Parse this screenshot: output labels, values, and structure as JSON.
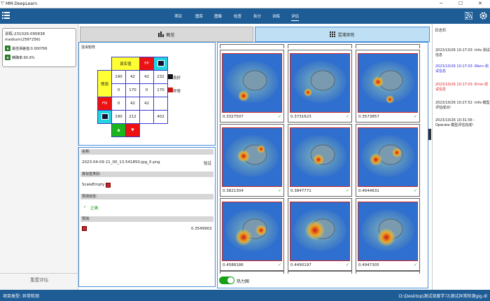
{
  "app": {
    "title": "MM-DeepLearn"
  },
  "nav": {
    "tabs": [
      "项目",
      "图库",
      "图像",
      "检查",
      "拆分",
      "训练",
      "评估"
    ],
    "active": "评估"
  },
  "model": {
    "name": "训练-231026-095838",
    "size": "medium(256*256)",
    "loss_label": "最佳误差值:0.000766",
    "acc_label": "精确率:90.9%"
  },
  "left": {
    "reset_button": "重置评估"
  },
  "view_tabs": {
    "overview": "概览",
    "matrix": "混淆矩阵"
  },
  "cm": {
    "title": "混淆矩阵",
    "header_label": "真实值",
    "fp_label": "FP",
    "row_label": "预测",
    "fn_label": "FN",
    "good_label": "良好",
    "abnormal_label": "异常",
    "rows": [
      [
        "190",
        "42",
        "42",
        "232"
      ],
      [
        "0",
        "170",
        "0",
        "170"
      ],
      [
        "0",
        "42",
        "42",
        ""
      ],
      [
        "190",
        "212",
        "",
        "402"
      ]
    ]
  },
  "info": {
    "name_header": "名称:",
    "filename": "2023-04-09 21_00_13.541850.jpg_0.png",
    "verify_label": "验证",
    "truth_header": "真标签类别:",
    "truth_value": "ScaleEmpty",
    "state_header": "预测状态:",
    "state_value": "正确",
    "pred_header": "预测:",
    "pred_value": "0.3549902"
  },
  "gallery": {
    "scores": [
      "0.3327507",
      "0.3731623",
      "0.3573857",
      "0.3821304",
      "0.3847771",
      "0.4644631",
      "0.4588186",
      "0.4490197",
      "0.4947305"
    ]
  },
  "heatmap_toggle": {
    "label": "热力图",
    "on": true
  },
  "log": {
    "title": "日志栏",
    "entries": [
      {
        "text": "2023/10/26 10:17:03 -Info-测试信息",
        "color": "#222222"
      },
      {
        "text": "2023/10/26 10:17:03 -Warn-测试信息",
        "color": "#2a2ae0"
      },
      {
        "text": "2023/10/26 10:17:03 -Error-测试信息",
        "color": "#e02020"
      },
      {
        "text": "2023/10/26 10:27:52 -Info-模型评估成功!",
        "color": "#222222"
      },
      {
        "text": "2023/10/26 10:31:56 -Operate-模型评估完成!",
        "color": "#222222"
      }
    ]
  },
  "status": {
    "project_type": "项目类型: 异常检测",
    "path": "D:\\Desktop\\测试深度学习\\测试异常检测gig.dl"
  },
  "colors": {
    "nav": "#1e5c96",
    "accent": "#4a90d9",
    "error": "#e02020",
    "warn": "#2a2ae0",
    "toggle": "#19a019"
  },
  "icons": [
    "menu-icon",
    "bar-chart-icon",
    "grid-icon",
    "image-icon",
    "thumbs-up-icon",
    "thumbs-down-icon",
    "settings-icon",
    "rss-icon",
    "check-icon"
  ]
}
